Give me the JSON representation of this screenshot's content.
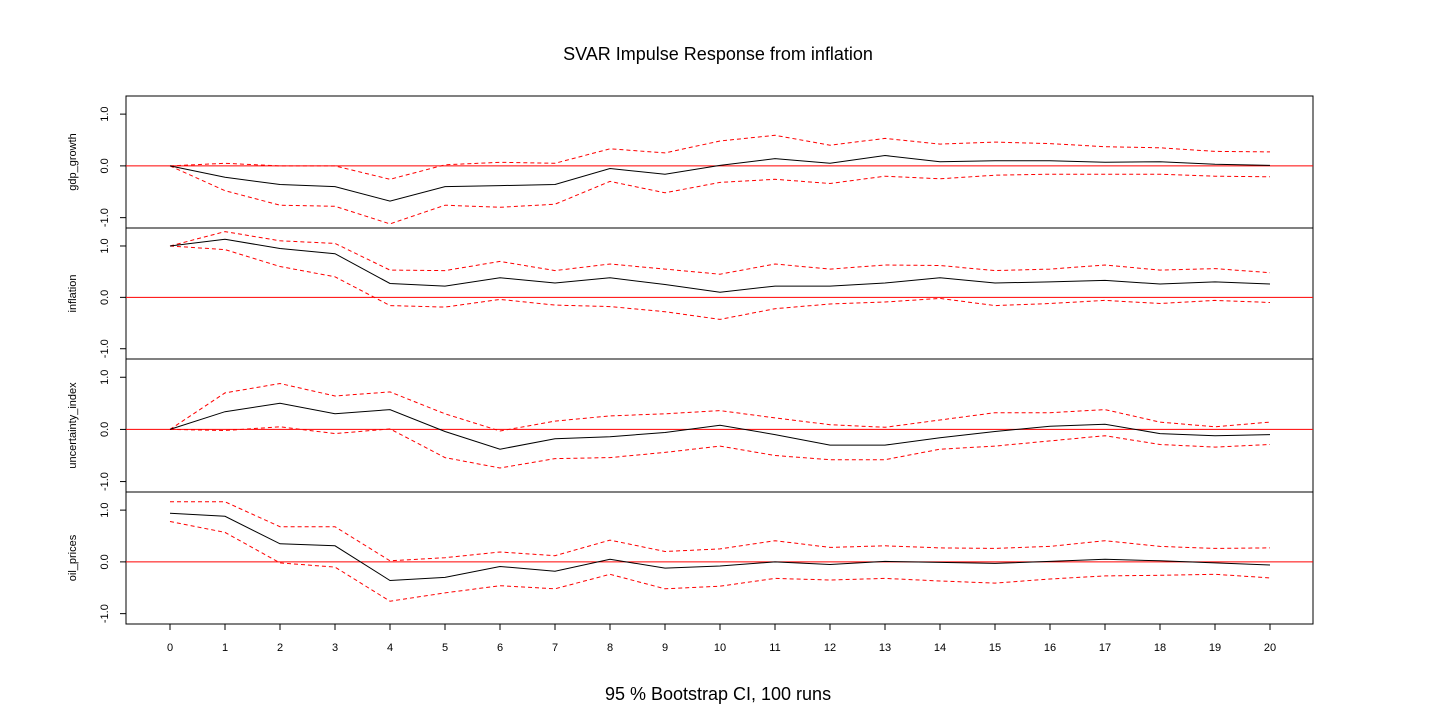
{
  "chart_data": {
    "type": "line",
    "title": "SVAR Impulse Response from inflation",
    "footer": "95 % Bootstrap CI,  100 runs",
    "x": [
      0,
      1,
      2,
      3,
      4,
      5,
      6,
      7,
      8,
      9,
      10,
      11,
      12,
      13,
      14,
      15,
      16,
      17,
      18,
      19,
      20
    ],
    "x_tick_labels": [
      "0",
      "1",
      "2",
      "3",
      "4",
      "5",
      "6",
      "7",
      "8",
      "9",
      "10",
      "11",
      "12",
      "13",
      "14",
      "15",
      "16",
      "17",
      "18",
      "19",
      "20"
    ],
    "ylim": [
      -1.2,
      1.35
    ],
    "y_tick_labels": [
      "1.0",
      "0.0",
      "-1.0"
    ],
    "y_ticks": [
      1.0,
      0.0,
      -1.0
    ],
    "grid": false,
    "colors": {
      "response": "#000000",
      "ci": "#ff0000",
      "zero_line": "#ff0000"
    },
    "panels": [
      {
        "name": "gdp_growth",
        "response": [
          0.0,
          -0.22,
          -0.36,
          -0.4,
          -0.68,
          -0.4,
          -0.38,
          -0.36,
          -0.05,
          -0.16,
          0.01,
          0.14,
          0.05,
          0.2,
          0.08,
          0.1,
          0.1,
          0.07,
          0.08,
          0.03,
          0.01
        ],
        "upper": [
          0.0,
          0.05,
          0.0,
          0.0,
          -0.26,
          0.02,
          0.07,
          0.05,
          0.33,
          0.25,
          0.48,
          0.59,
          0.4,
          0.53,
          0.42,
          0.46,
          0.43,
          0.37,
          0.35,
          0.28,
          0.27
        ],
        "lower": [
          0.0,
          -0.48,
          -0.76,
          -0.78,
          -1.12,
          -0.76,
          -0.8,
          -0.74,
          -0.3,
          -0.52,
          -0.32,
          -0.26,
          -0.34,
          -0.2,
          -0.25,
          -0.18,
          -0.16,
          -0.16,
          -0.16,
          -0.2,
          -0.21
        ]
      },
      {
        "name": "inflation",
        "response": [
          1.0,
          1.13,
          0.95,
          0.85,
          0.27,
          0.22,
          0.38,
          0.28,
          0.38,
          0.25,
          0.1,
          0.22,
          0.22,
          0.28,
          0.38,
          0.28,
          0.3,
          0.33,
          0.26,
          0.3,
          0.26
        ],
        "upper": [
          1.0,
          1.28,
          1.1,
          1.05,
          0.53,
          0.52,
          0.7,
          0.52,
          0.65,
          0.55,
          0.45,
          0.65,
          0.55,
          0.63,
          0.62,
          0.52,
          0.55,
          0.63,
          0.53,
          0.56,
          0.48
        ],
        "lower": [
          1.0,
          0.93,
          0.6,
          0.4,
          -0.16,
          -0.19,
          -0.04,
          -0.15,
          -0.18,
          -0.28,
          -0.43,
          -0.22,
          -0.13,
          -0.09,
          -0.02,
          -0.16,
          -0.12,
          -0.06,
          -0.12,
          -0.06,
          -0.1
        ]
      },
      {
        "name": "uncertainty_index",
        "response": [
          0.0,
          0.34,
          0.5,
          0.3,
          0.38,
          -0.04,
          -0.38,
          -0.18,
          -0.14,
          -0.06,
          0.08,
          -0.1,
          -0.3,
          -0.3,
          -0.16,
          -0.04,
          0.06,
          0.1,
          -0.08,
          -0.12,
          -0.1
        ],
        "upper": [
          0.0,
          0.7,
          0.88,
          0.64,
          0.72,
          0.3,
          -0.03,
          0.16,
          0.26,
          0.3,
          0.36,
          0.22,
          0.09,
          0.04,
          0.18,
          0.32,
          0.32,
          0.38,
          0.14,
          0.05,
          0.14
        ],
        "lower": [
          0.0,
          -0.02,
          0.05,
          -0.08,
          0.01,
          -0.54,
          -0.74,
          -0.56,
          -0.54,
          -0.44,
          -0.32,
          -0.5,
          -0.58,
          -0.58,
          -0.38,
          -0.32,
          -0.22,
          -0.12,
          -0.29,
          -0.34,
          -0.29
        ]
      },
      {
        "name": "oil_prices",
        "response": [
          0.94,
          0.88,
          0.35,
          0.31,
          -0.36,
          -0.3,
          -0.09,
          -0.18,
          0.05,
          -0.12,
          -0.08,
          0.0,
          -0.05,
          0.01,
          -0.01,
          -0.03,
          0.01,
          0.05,
          0.02,
          -0.02,
          -0.06
        ],
        "upper": [
          1.16,
          1.16,
          0.68,
          0.68,
          0.02,
          0.08,
          0.19,
          0.12,
          0.42,
          0.2,
          0.25,
          0.41,
          0.28,
          0.31,
          0.27,
          0.26,
          0.3,
          0.41,
          0.3,
          0.26,
          0.27
        ],
        "lower": [
          0.78,
          0.57,
          -0.02,
          -0.1,
          -0.76,
          -0.6,
          -0.46,
          -0.52,
          -0.24,
          -0.52,
          -0.47,
          -0.32,
          -0.35,
          -0.32,
          -0.37,
          -0.41,
          -0.33,
          -0.27,
          -0.26,
          -0.24,
          -0.31
        ]
      }
    ]
  }
}
